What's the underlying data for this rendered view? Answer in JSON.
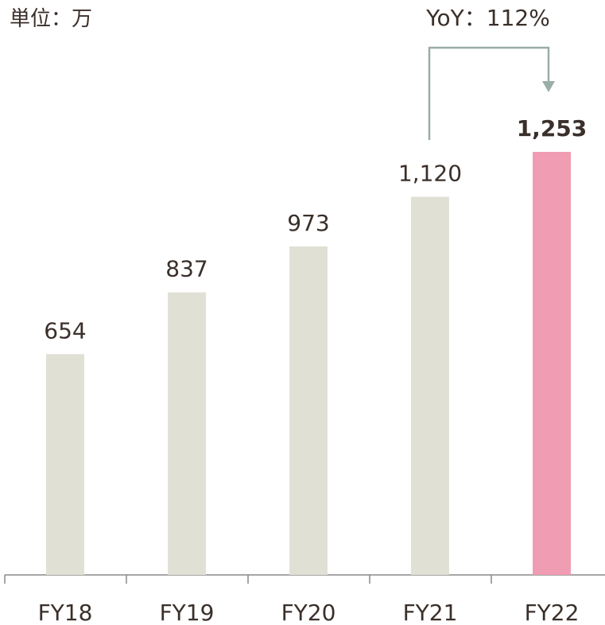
{
  "chart_data": {
    "type": "bar",
    "unit_label": "単位：万",
    "annotation": "YoY：112%",
    "categories": [
      "FY18",
      "FY19",
      "FY20",
      "FY21",
      "FY22"
    ],
    "values": [
      654,
      837,
      973,
      1120,
      1253
    ],
    "value_labels": [
      "654",
      "837",
      "973",
      "1,120",
      "1,253"
    ],
    "colors": [
      "#e1e0d5",
      "#e1e0d5",
      "#e1e0d5",
      "#e1e0d5",
      "#f09cb2"
    ]
  }
}
